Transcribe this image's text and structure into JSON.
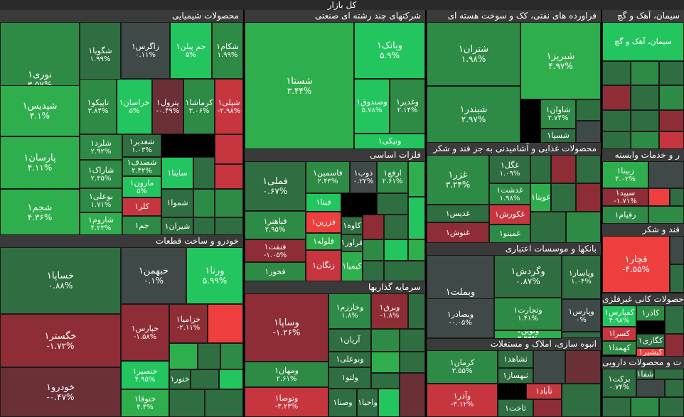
{
  "title": "کل بازار",
  "colors": {
    "g1": "#22c55e",
    "g2": "#2fae4d",
    "g3": "#2e8b45",
    "g4": "#2f6e40",
    "n": "#3f4a48",
    "r1": "#6b2f36",
    "r2": "#8e2d35",
    "r3": "#c7363f",
    "r4": "#ef3e3e"
  },
  "sectors": {
    "chemical": "محصولات شیمیایی",
    "multi": "شرکتهای چند رشته ای صنعتی",
    "oil": "فراورده های نفتی، کک و سوخت هسته ای",
    "cement": "سیمان، آهک و گچ",
    "food": "محصولات غذایی و آشامیدنی به جز قند و شکر",
    "metals": "فلزات اساسی",
    "auto": "خودرو و ساخت قطعات",
    "credit": "بانکها و موسسات اعتباری",
    "invest": "سرمایه گذاریها",
    "construction": "انبوه سازی، املاک و مستغلات",
    "services": "ر و خدمات وابسته",
    "sugar": "قند و شکر",
    "minerals": "حصولات کانی غیرفلزی",
    "pharma": "ت و محصولات دارویی"
  },
  "cells": [
    {
      "name": "نوری۱",
      "pct": "۳.۵۷%",
      "c": "g3"
    },
    {
      "name": "شگویا۱",
      "pct": "۱.۹۹%",
      "c": "g4"
    },
    {
      "name": "زاگرس۱",
      "pct": "۰.۱۱%",
      "c": "n"
    },
    {
      "name": "جم پیلن۱",
      "pct": "۵%",
      "c": "g1"
    },
    {
      "name": "شکام۱",
      "pct": "۱.۹۹%",
      "c": "g3"
    },
    {
      "name": "شپدیس۱",
      "pct": "۴.۱%",
      "c": "g2"
    },
    {
      "name": "تاپیکو۱",
      "pct": "۳.۸۴%",
      "c": "g3"
    },
    {
      "name": "خراسان۱",
      "pct": "۵%",
      "c": "g1"
    },
    {
      "name": "پترول۱",
      "pct": "-۰.۴۹%",
      "c": "r1"
    },
    {
      "name": "کرماشا۱",
      "pct": "۳.۰۶%",
      "c": "g3"
    },
    {
      "name": "شپلی۱",
      "pct": "-۲.۹۸%",
      "c": "r3"
    },
    {
      "name": "شلرد۱",
      "pct": "۲.۹۲%",
      "c": "g3"
    },
    {
      "name": "شغدیر۱",
      "pct": "۱.۰۳%",
      "c": "g4"
    },
    {
      "name": "پارسان۱",
      "pct": "۴.۱۱%",
      "c": "g2"
    },
    {
      "name": "شصدف۱",
      "pct": "۲.۴۲%",
      "c": "g3"
    },
    {
      "name": "ساینا۱",
      "pct": "",
      "c": "g1"
    },
    {
      "name": "شاراک۱",
      "pct": "۲.۳۵%",
      "c": "g3"
    },
    {
      "name": "مارون۱",
      "pct": "۵%",
      "c": "g1"
    },
    {
      "name": "بوعلی۱",
      "pct": "۱.۷۱%",
      "c": "g3"
    },
    {
      "name": "کلر۱",
      "pct": "",
      "c": "r3"
    },
    {
      "name": "شموا۱",
      "pct": "",
      "c": "g4"
    },
    {
      "name": "شجم۱",
      "pct": "۴.۳۶%",
      "c": "g2"
    },
    {
      "name": "شاروم۱",
      "pct": "۴.۲۳%",
      "c": "g2"
    },
    {
      "name": "جم۱",
      "pct": "",
      "c": "g3"
    },
    {
      "name": "شیران۱",
      "pct": "",
      "c": "g4"
    },
    {
      "name": "وبانک۱",
      "pct": "۵.۹%",
      "c": "g1"
    },
    {
      "name": "شستا۱",
      "pct": "۳.۴۴%",
      "c": "g2"
    },
    {
      "name": "وصندوق۱",
      "pct": "۵.۷۸%",
      "c": "g1"
    },
    {
      "name": "وغدیر۱",
      "pct": "۲.۱۴%",
      "c": "g3"
    },
    {
      "name": "ونیکی۱",
      "pct": "",
      "c": "g1"
    },
    {
      "name": "شتران۱",
      "pct": "۱.۹۸%",
      "c": "g3"
    },
    {
      "name": "شبریز۱",
      "pct": "۴.۹۷%",
      "c": "g2"
    },
    {
      "name": "شاوان۱",
      "pct": "۲.۷۴%",
      "c": "g3"
    },
    {
      "name": "شبندر۱",
      "pct": "۲.۹۷%",
      "c": "g3"
    },
    {
      "name": "شسپا۱",
      "pct": "",
      "c": "g4"
    },
    {
      "name": "غزر۱",
      "pct": "۳.۲۴%",
      "c": "g3"
    },
    {
      "name": "غگل۱",
      "pct": "۱.۰۹%",
      "c": "g4"
    },
    {
      "name": "غدشت۱",
      "pct": "۱.۹۸%",
      "c": "g3"
    },
    {
      "name": "غویتا۱",
      "pct": "",
      "c": "g2"
    },
    {
      "name": "غدیس۱",
      "pct": "",
      "c": "g4"
    },
    {
      "name": "غکورش۱",
      "pct": "",
      "c": "r3"
    },
    {
      "name": "غنوش۱",
      "pct": "",
      "c": "r2"
    },
    {
      "name": "غمینو۱",
      "pct": "",
      "c": "g3"
    },
    {
      "name": "فملی۱",
      "pct": "۰.۶۷%",
      "c": "g4"
    },
    {
      "name": "فاسمین۱",
      "pct": "۲.۴۳%",
      "c": "g3"
    },
    {
      "name": "ذوب۱",
      "pct": "۰.۲۲%",
      "c": "n"
    },
    {
      "name": "ارفع۱",
      "pct": "۲.۶۱%",
      "c": "g3"
    },
    {
      "name": "فیتا۱",
      "pct": "",
      "c": "g1"
    },
    {
      "name": "فزرین۱",
      "pct": "",
      "c": "r4"
    },
    {
      "name": "فباهنر۱",
      "pct": "۲.۹۵%",
      "c": "g3"
    },
    {
      "name": "فلوله۱",
      "pct": "",
      "c": "g2"
    },
    {
      "name": "کاوه۱",
      "pct": "",
      "c": "g4"
    },
    {
      "name": "فراور۱",
      "pct": "",
      "c": "g4"
    },
    {
      "name": "فنفت۱",
      "pct": "-۱.۰۵%",
      "c": "r2"
    },
    {
      "name": "زنگان۱",
      "pct": "",
      "c": "r3"
    },
    {
      "name": "کیمیا۱",
      "pct": "",
      "c": "g2"
    },
    {
      "name": "فخوز۱",
      "pct": "",
      "c": "g3"
    },
    {
      "name": "خساپا۱",
      "pct": "۰.۸۸%",
      "c": "g4"
    },
    {
      "name": "خبهمن۱",
      "pct": "۰.۱%",
      "c": "n"
    },
    {
      "name": "ورنا۱",
      "pct": "۵.۹۹%",
      "c": "g1"
    },
    {
      "name": "خگستر۱",
      "pct": "-۱.۷۲%",
      "c": "r2"
    },
    {
      "name": "خپارس۱",
      "pct": "-۱.۵۸%",
      "c": "r2"
    },
    {
      "name": "خزامیا۱",
      "pct": "-۲.۱۱%",
      "c": "r2"
    },
    {
      "name": "خنصیر۱",
      "pct": "۴.۹۵%",
      "c": "g1"
    },
    {
      "name": "خودرو۱",
      "pct": "-۰.۴۷%",
      "c": "r1"
    },
    {
      "name": "ختوقا۱",
      "pct": "۴.۴%",
      "c": "g2"
    },
    {
      "name": "ختور۱",
      "pct": "",
      "c": "g4"
    },
    {
      "name": "وساپا۱",
      "pct": "-۱.۲۶%",
      "c": "r2"
    },
    {
      "name": "وخارزم۱",
      "pct": "۱.۸%",
      "c": "g3"
    },
    {
      "name": "وبرق۱",
      "pct": "-۱.۸%",
      "c": "r2"
    },
    {
      "name": "آریان۱",
      "pct": "",
      "c": "g4"
    },
    {
      "name": "ومهان۱",
      "pct": "۲.۶۱%",
      "c": "g3"
    },
    {
      "name": "وبوعلی۱",
      "pct": "",
      "c": "g4"
    },
    {
      "name": "ولتو۱",
      "pct": "",
      "c": "g4"
    },
    {
      "name": "وتوصا۱",
      "pct": "-۳.۲۳%",
      "c": "r3"
    },
    {
      "name": "وصنا۱",
      "pct": "",
      "c": "g4"
    },
    {
      "name": "واحیا۱",
      "pct": "",
      "c": "g4"
    },
    {
      "name": "وبملت۱",
      "pct": "-۰.۰۵%",
      "c": "n"
    },
    {
      "name": "وگردش۱",
      "pct": "۰.۸۷%",
      "c": "g4"
    },
    {
      "name": "وپاسار۱",
      "pct": "۱.۰۴%",
      "c": "g4"
    },
    {
      "name": "وتجارت۱",
      "pct": "۱.۴۱%",
      "c": "g3"
    },
    {
      "name": "وپارس۱",
      "pct": "۰%",
      "c": "n"
    },
    {
      "name": "وبصادر۱",
      "pct": "-۰.۰۵%",
      "c": "n"
    },
    {
      "name": "ونوین۱",
      "pct": "۴.۴۳%",
      "c": "g2"
    },
    {
      "name": "کرمان۱",
      "pct": "۳.۵۵%",
      "c": "g3"
    },
    {
      "name": "ثشاهد۱",
      "pct": "",
      "c": "g4"
    },
    {
      "name": "ثبهساز۱",
      "pct": "",
      "c": "g4"
    },
    {
      "name": "ثآباد۱",
      "pct": "",
      "c": "r3"
    },
    {
      "name": "وآذر۱",
      "pct": "-۳.۱۲%",
      "c": "r3"
    },
    {
      "name": "ثاخت۱",
      "pct": "",
      "c": "g4"
    },
    {
      "name": "سیمان، آهک و گچ",
      "pct": "",
      "c": "g1"
    },
    {
      "name": "زبینا۱",
      "pct": "۴.۰۲%",
      "c": "g2"
    },
    {
      "name": "سپید۱",
      "pct": "-۱.۷۱%",
      "c": "r2"
    },
    {
      "name": "رقیام۱",
      "pct": "",
      "c": "g3"
    },
    {
      "name": "قچار۱",
      "pct": "-۴.۵۵%",
      "c": "r4"
    },
    {
      "name": "کفپارس۱",
      "pct": "۴.۹۸%",
      "c": "g1"
    },
    {
      "name": "کاذر۱",
      "pct": "",
      "c": "g3"
    },
    {
      "name": "کسرا۱",
      "pct": "",
      "c": "r3"
    },
    {
      "name": "کگازی۱",
      "pct": "",
      "c": "g4"
    },
    {
      "name": "کهمدا۱",
      "pct": "",
      "c": "g3"
    },
    {
      "name": "کپشیر۱",
      "pct": "",
      "c": "r4"
    },
    {
      "name": "برکت۱",
      "pct": "۰.۷۴%",
      "c": "g4"
    },
    {
      "name": "شفا۱",
      "pct": "",
      "c": "g4"
    }
  ]
}
